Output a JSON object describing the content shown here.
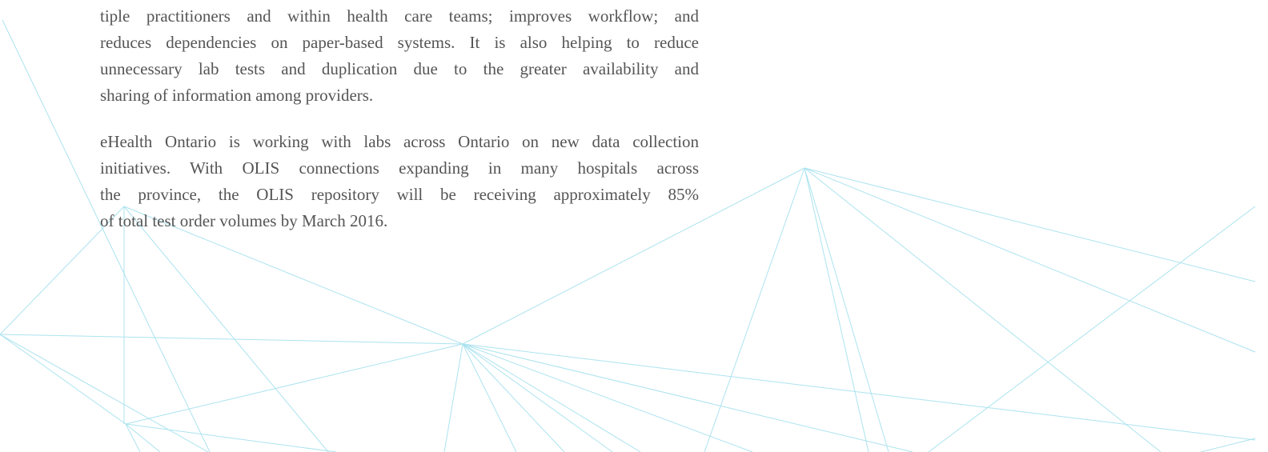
{
  "paragraphs": [
    [
      "tiple practitioners and within health care teams; improves workflow; and",
      "reduces dependencies on paper-based systems. It is also helping to reduce",
      "unnecessary lab tests and duplication due to the greater availability and",
      "sharing of information among providers."
    ],
    [
      "eHealth Ontario is working with labs across Ontario on new data collection",
      "initiatives. With OLIS connections expanding in many hospitals across",
      "the province, the OLIS repository will be receiving approximately 85%",
      "of total test order volumes by March 2016."
    ]
  ]
}
